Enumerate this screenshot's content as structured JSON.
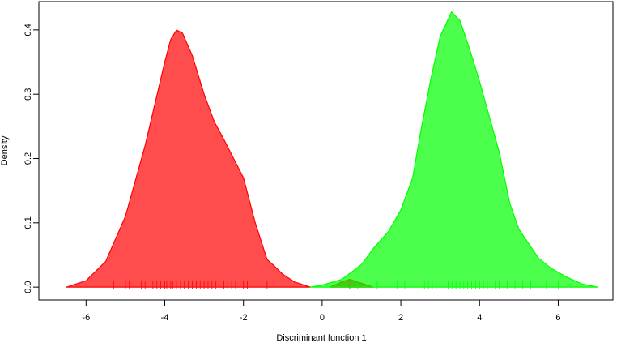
{
  "chart_data": {
    "type": "density",
    "x_label": "Discriminant function 1",
    "y_label": "Density",
    "xlim": [
      -7.2,
      7.39
    ],
    "ylim": [
      -0.02,
      0.444
    ],
    "xticks": [
      -6,
      -4,
      -2,
      0,
      2,
      4,
      6
    ],
    "yticks": [
      {
        "value": 0,
        "label": "0.0"
      },
      0.1,
      0.2,
      0.3,
      0.4
    ],
    "alpha": 0.7,
    "series": [
      {
        "color": "#ff0000",
        "x": [
          -6.5,
          -6.0,
          -5.5,
          -5.0,
          -4.5,
          -4.0,
          -3.85,
          -3.7,
          -3.55,
          -3.3,
          -3.0,
          -2.74,
          -2.5,
          -2.25,
          -2.0,
          -1.7,
          -1.4,
          -1.2,
          -1.0,
          -0.7,
          -0.5,
          -0.3,
          null,
          0.2,
          0.5,
          0.7,
          0.9,
          1.3
        ],
        "values": [
          0,
          0.01,
          0.04,
          0.11,
          0.22,
          0.35,
          0.385,
          0.4,
          0.395,
          0.36,
          0.3,
          0.257,
          0.23,
          0.2,
          0.17,
          0.1,
          0.043,
          0.032,
          0.02,
          0.008,
          0.004,
          0,
          null,
          0,
          0.008,
          0.012,
          0.008,
          0
        ],
        "rug": [
          -5.3,
          -5.0,
          -4.9,
          -4.6,
          -4.5,
          -4.3,
          -4.2,
          -4.1,
          -4.0,
          -3.95,
          -3.85,
          -3.8,
          -3.7,
          -3.6,
          -3.5,
          -3.4,
          -3.3,
          -3.2,
          -3.1,
          -3.0,
          -2.9,
          -2.8,
          -2.7,
          -2.5,
          -2.4,
          -2.3,
          -2.2,
          -2.0,
          -1.9,
          -1.4,
          -1.1,
          0.7
        ]
      },
      {
        "color": "#00ff00",
        "x": [
          -0.3,
          0.0,
          0.5,
          1.0,
          1.3,
          1.69,
          2.0,
          2.3,
          2.5,
          2.75,
          3.0,
          3.29,
          3.5,
          3.75,
          4.0,
          4.5,
          4.77,
          5.0,
          5.5,
          5.8,
          6.2,
          6.6,
          7.0
        ],
        "values": [
          0,
          0.003,
          0.012,
          0.035,
          0.06,
          0.087,
          0.12,
          0.17,
          0.24,
          0.32,
          0.39,
          0.428,
          0.415,
          0.37,
          0.32,
          0.21,
          0.13,
          0.09,
          0.045,
          0.03,
          0.016,
          0.005,
          0
        ],
        "rug": [
          0.3,
          0.9,
          1.4,
          1.6,
          1.9,
          2.1,
          2.6,
          2.7,
          2.8,
          2.9,
          3.0,
          3.1,
          3.2,
          3.3,
          3.4,
          3.5,
          3.6,
          3.7,
          3.8,
          3.9,
          4.0,
          4.1,
          4.2,
          4.4,
          4.5,
          4.7,
          4.9,
          5.1,
          5.3,
          5.7,
          6.0
        ]
      }
    ]
  }
}
